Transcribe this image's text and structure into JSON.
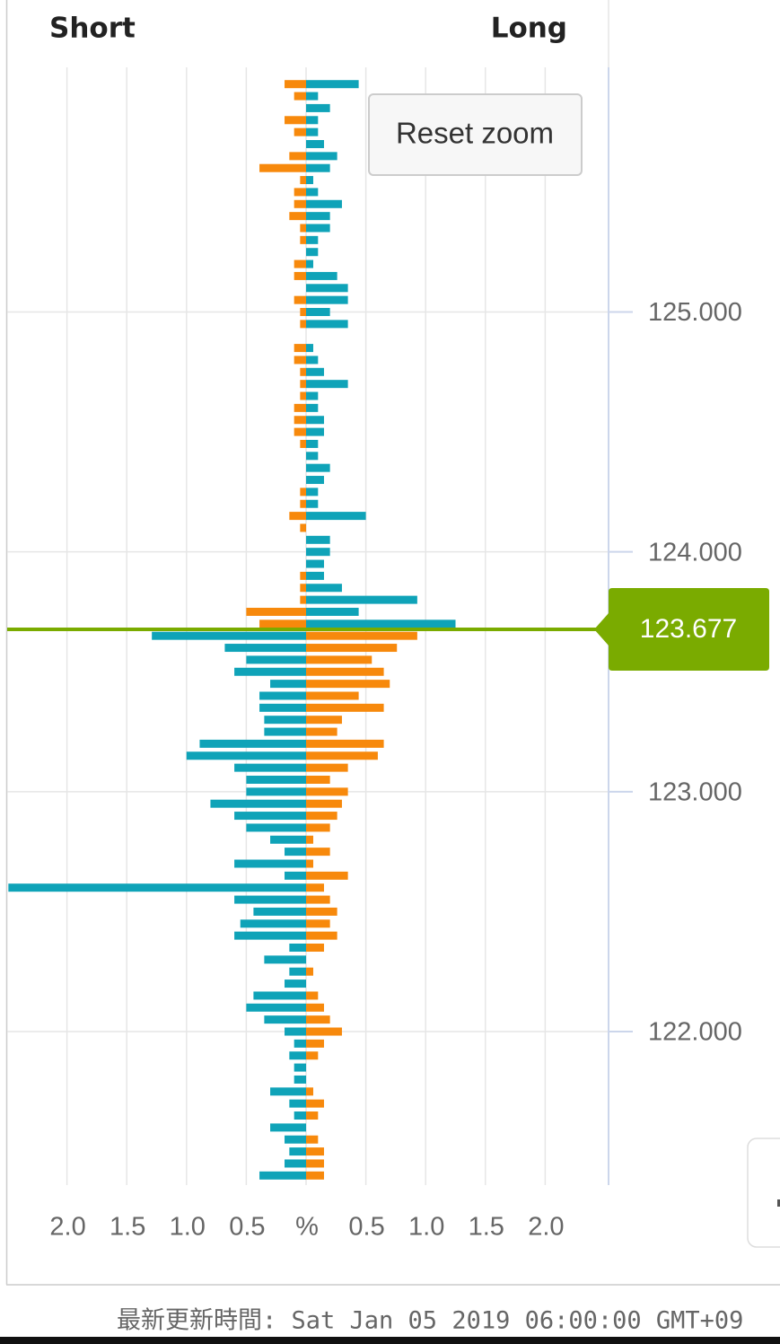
{
  "chart_data": {
    "type": "bar",
    "orientation": "horizontal",
    "series": [
      {
        "name": "Short",
        "side": "left",
        "color_above": "#f7890c",
        "color_below": "#0fa3b8",
        "values": [
          0.18,
          0.1,
          0,
          0.18,
          0.1,
          0,
          0.14,
          0.39,
          0.05,
          0.1,
          0.1,
          0.14,
          0.05,
          0.05,
          0,
          0.1,
          0.1,
          0,
          0.1,
          0.05,
          0.05,
          0,
          0.1,
          0.1,
          0.05,
          0.05,
          0.05,
          0.1,
          0.1,
          0.1,
          0.05,
          0,
          0,
          0,
          0.05,
          0.05,
          0.14,
          0.05,
          0,
          0,
          0,
          0.05,
          0.05,
          0.05,
          0.5,
          0.39,
          1.29,
          0.68,
          0.5,
          0.6,
          0.3,
          0.39,
          0.39,
          0.35,
          0.35,
          0.89,
          1.0,
          0.6,
          0.5,
          0.5,
          0.8,
          0.6,
          0.5,
          0.3,
          0.18,
          0.6,
          0.18,
          2.49,
          0.6,
          0.44,
          0.55,
          0.6,
          0.14,
          0.35,
          0.14,
          0.18,
          0.44,
          0.5,
          0.35,
          0.18,
          0.1,
          0.14,
          0.1,
          0.1,
          0.3,
          0.14,
          0.1,
          0.3,
          0.18,
          0.14,
          0.18,
          0.39
        ]
      },
      {
        "name": "Long",
        "side": "right",
        "color_above": "#0fa3b8",
        "color_below": "#f7890c",
        "values": [
          0.44,
          0.1,
          0.2,
          0.1,
          0.1,
          0.15,
          0.26,
          0.2,
          0.06,
          0.1,
          0.3,
          0.2,
          0.2,
          0.1,
          0.1,
          0.06,
          0.26,
          0.35,
          0.35,
          0.2,
          0.35,
          0,
          0.06,
          0.1,
          0.15,
          0.35,
          0.1,
          0.1,
          0.15,
          0.15,
          0.1,
          0.1,
          0.2,
          0.15,
          0.1,
          0.1,
          0.5,
          0,
          0.2,
          0.2,
          0.15,
          0.15,
          0.3,
          0.93,
          0.44,
          1.25,
          0.93,
          0.76,
          0.55,
          0.65,
          0.7,
          0.44,
          0.65,
          0.3,
          0.26,
          0.65,
          0.6,
          0.35,
          0.2,
          0.35,
          0.3,
          0.26,
          0.2,
          0.06,
          0.2,
          0.06,
          0.35,
          0.15,
          0.2,
          0.26,
          0.2,
          0.26,
          0.15,
          0,
          0.06,
          0,
          0.1,
          0.15,
          0.2,
          0.3,
          0.15,
          0.1,
          0,
          0,
          0.06,
          0.15,
          0.1,
          0,
          0.1,
          0.15,
          0.15,
          0.15
        ]
      }
    ],
    "y": [
      125.95,
      125.9,
      125.85,
      125.8,
      125.75,
      125.7,
      125.65,
      125.6,
      125.55,
      125.5,
      125.45,
      125.4,
      125.35,
      125.3,
      125.25,
      125.2,
      125.15,
      125.1,
      125.05,
      125,
      124.95,
      124.9,
      124.85,
      124.8,
      124.75,
      124.7,
      124.65,
      124.6,
      124.55,
      124.5,
      124.45,
      124.4,
      124.35,
      124.3,
      124.25,
      124.2,
      124.15,
      124.1,
      124.05,
      124,
      123.95,
      123.9,
      123.85,
      123.8,
      123.75,
      123.7,
      123.65,
      123.6,
      123.55,
      123.5,
      123.45,
      123.4,
      123.35,
      123.3,
      123.25,
      123.2,
      123.15,
      123.1,
      123.05,
      123,
      122.95,
      122.9,
      122.85,
      122.8,
      122.75,
      122.7,
      122.65,
      122.6,
      122.55,
      122.5,
      122.45,
      122.4,
      122.35,
      122.3,
      122.25,
      122.2,
      122.15,
      122.1,
      122.05,
      122,
      121.95,
      121.9,
      121.85,
      121.8,
      121.75,
      121.7,
      121.65,
      121.6,
      121.55,
      121.5,
      121.45,
      121.4
    ],
    "xlim": [
      -2.5,
      2.5
    ],
    "xticks": [
      {
        "value": -2,
        "label": "2.0"
      },
      {
        "value": -1.5,
        "label": "1.5"
      },
      {
        "value": -1,
        "label": "1.0"
      },
      {
        "value": -0.5,
        "label": "0.5"
      },
      {
        "value": 0,
        "label": "%"
      },
      {
        "value": 0.5,
        "label": "0.5"
      },
      {
        "value": 1,
        "label": "1.0"
      },
      {
        "value": 1.5,
        "label": "1.5"
      },
      {
        "value": 2,
        "label": "2.0"
      }
    ],
    "ylim": [
      121.36,
      126.02
    ],
    "yticks": [
      {
        "value": 122,
        "label": "122.000"
      },
      {
        "value": 123,
        "label": "123.000"
      },
      {
        "value": 124,
        "label": "124.000"
      },
      {
        "value": 125,
        "label": "125.000"
      }
    ],
    "grid": true,
    "current_price": {
      "value": 123.677,
      "label": "123.677",
      "color": "#7aab00"
    }
  },
  "reset_zoom": "Reset zoom",
  "footer": "最新更新時間: Sat Jan 05 2019 06:00:00 GMT+09"
}
